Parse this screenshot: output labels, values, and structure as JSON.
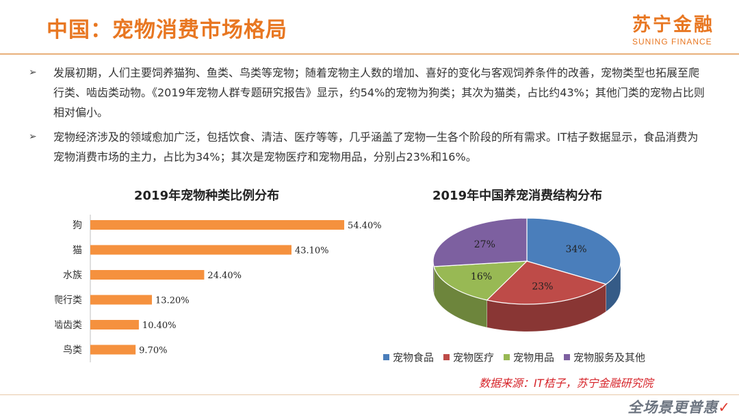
{
  "header": {
    "title": "中国：宠物消费市场格局",
    "logo_cn": "苏宁金融",
    "logo_en": "SUNING FINANCE"
  },
  "bullets": [
    "发展初期，人们主要饲养猫狗、鱼类、鸟类等宠物；随着宠物主人数的增加、喜好的变化与客观饲养条件的改善，宠物类型也拓展至爬行类、啮齿类动物。《2019年宠物人群专题研究报告》显示，约54%的宠物为狗类；其次为猫类，占比约43%；其他门类的宠物占比则相对偏小。",
    "宠物经济涉及的领域愈加广泛，包括饮食、清洁、医疗等等，几乎涵盖了宠物一生各个阶段的所有需求。IT桔子数据显示，食品消费为宠物消费市场的主力，占比为34%；其次是宠物医疗和宠物用品，分别占23%和16%。"
  ],
  "bullet_marker": "➢",
  "chart_data": [
    {
      "type": "bar",
      "orientation": "horizontal",
      "title": "2019年宠物种类比例分布",
      "categories": [
        "狗",
        "猫",
        "水族",
        "爬行类",
        "啮齿类",
        "鸟类"
      ],
      "values": [
        54.4,
        43.1,
        24.4,
        13.2,
        10.4,
        9.7
      ],
      "value_labels": [
        "54.40%",
        "43.10%",
        "24.40%",
        "13.20%",
        "10.40%",
        "9.70%"
      ],
      "xlim": [
        0,
        60
      ],
      "color": "#f5913e",
      "grid": false
    },
    {
      "type": "pie",
      "style": "3d",
      "title": "2019年中国养宠消费结构分布",
      "labels": [
        "宠物食品",
        "宠物医疗",
        "宠物用品",
        "宠物服务及其他"
      ],
      "values": [
        34,
        23,
        16,
        27
      ],
      "value_labels": [
        "34%",
        "23%",
        "16%",
        "27%"
      ],
      "colors": [
        "#4a7ebb",
        "#be4b48",
        "#98b954",
        "#7d60a0"
      ],
      "legend_position": "bottom"
    }
  ],
  "source": "数据来源：IT桔子，苏宁金融研究院",
  "watermark": "全场景更普惠"
}
